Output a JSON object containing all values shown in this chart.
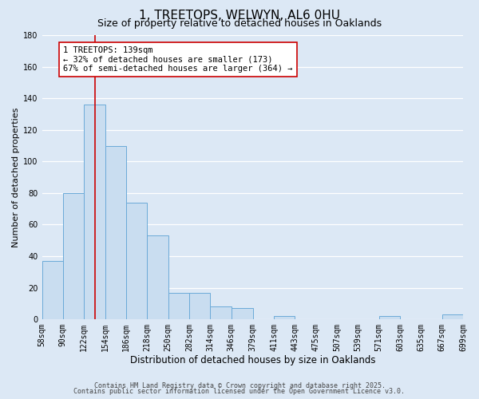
{
  "title": "1, TREETOPS, WELWYN, AL6 0HU",
  "subtitle": "Size of property relative to detached houses in Oaklands",
  "xlabel": "Distribution of detached houses by size in Oaklands",
  "ylabel": "Number of detached properties",
  "bin_edges": [
    58,
    90,
    122,
    154,
    186,
    218,
    250,
    282,
    314,
    346,
    379,
    411,
    443,
    475,
    507,
    539,
    571,
    603,
    635,
    667,
    699
  ],
  "bar_heights": [
    37,
    80,
    136,
    110,
    74,
    53,
    17,
    17,
    8,
    7,
    0,
    2,
    0,
    0,
    0,
    0,
    2,
    0,
    0,
    3
  ],
  "bar_facecolor": "#c9ddf0",
  "bar_edgecolor": "#6baad8",
  "ylim": [
    0,
    180
  ],
  "yticks": [
    0,
    20,
    40,
    60,
    80,
    100,
    120,
    140,
    160,
    180
  ],
  "property_size": 139,
  "redline_color": "#cc0000",
  "annotation_text": "1 TREETOPS: 139sqm\n← 32% of detached houses are smaller (173)\n67% of semi-detached houses are larger (364) →",
  "annotation_box_edgecolor": "#cc0000",
  "annotation_box_facecolor": "#ffffff",
  "footer_line1": "Contains HM Land Registry data © Crown copyright and database right 2025.",
  "footer_line2": "Contains public sector information licensed under the Open Government Licence v3.0.",
  "background_color": "#dce8f5",
  "plot_background_color": "#dce8f5",
  "grid_color": "#ffffff",
  "title_fontsize": 11,
  "subtitle_fontsize": 9,
  "xlabel_fontsize": 8.5,
  "ylabel_fontsize": 8,
  "tick_fontsize": 7,
  "annotation_fontsize": 7.5,
  "footer_fontsize": 6
}
